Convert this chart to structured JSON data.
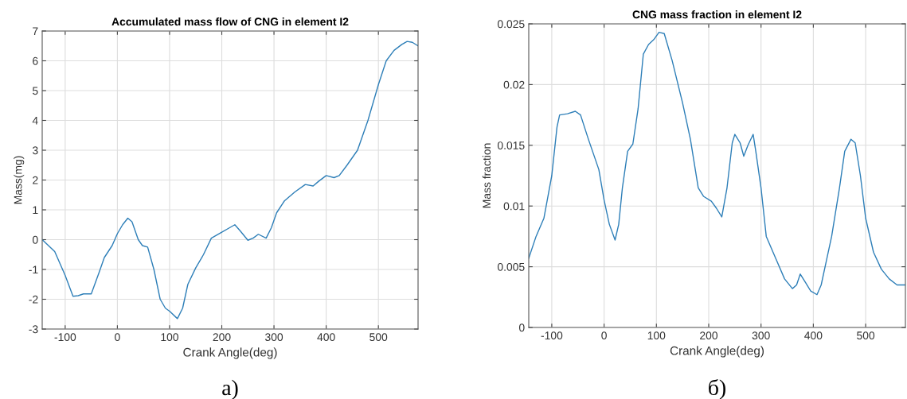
{
  "chart_data": [
    {
      "type": "line",
      "title": "Accumulated mass flow of CNG in element I2",
      "xlabel": "Crank Angle(deg)",
      "ylabel": "Mass(mg)",
      "annotations": [
        "a)"
      ],
      "x": [
        -144,
        -120,
        -100,
        -85,
        -75,
        -65,
        -50,
        -35,
        -25,
        -10,
        0,
        10,
        20,
        28,
        40,
        48,
        58,
        70,
        82,
        92,
        100,
        115,
        125,
        135,
        150,
        165,
        180,
        200,
        215,
        225,
        235,
        250,
        260,
        270,
        285,
        295,
        305,
        320,
        340,
        360,
        375,
        385,
        400,
        415,
        425,
        440,
        460,
        480,
        500,
        515,
        530,
        545,
        555,
        565,
        576
      ],
      "series": [
        {
          "color": "#2e7fb8",
          "values": [
            0,
            -0.4,
            -1.2,
            -1.9,
            -1.88,
            -1.82,
            -1.82,
            -1.1,
            -0.6,
            -0.2,
            0.2,
            0.5,
            0.72,
            0.6,
            0,
            -0.2,
            -0.25,
            -1.0,
            -2.0,
            -2.3,
            -2.4,
            -2.65,
            -2.3,
            -1.5,
            -0.95,
            -0.5,
            0.05,
            0.25,
            0.4,
            0.5,
            0.3,
            -0.02,
            0.05,
            0.18,
            0.05,
            0.4,
            0.9,
            1.3,
            1.6,
            1.85,
            1.8,
            1.95,
            2.15,
            2.08,
            2.15,
            2.5,
            3.0,
            4.0,
            5.2,
            6.0,
            6.35,
            6.55,
            6.65,
            6.62,
            6.5
          ]
        }
      ],
      "xlim": [
        -144,
        576
      ],
      "xticks": [
        -100,
        0,
        100,
        200,
        300,
        400,
        500
      ],
      "ylim": [
        -3,
        7
      ],
      "yticks": [
        -3,
        -2,
        -1,
        0,
        1,
        2,
        3,
        4,
        5,
        6,
        7
      ],
      "grid": true
    },
    {
      "type": "line",
      "title": "CNG mass fraction in element I2",
      "xlabel": "Crank Angle(deg)",
      "ylabel": "Mass fraction",
      "annotations": [
        "б)"
      ],
      "x": [
        -144,
        -130,
        -115,
        -100,
        -90,
        -85,
        -70,
        -55,
        -45,
        -30,
        -10,
        0,
        10,
        21,
        28,
        35,
        45,
        55,
        65,
        75,
        85,
        95,
        105,
        115,
        130,
        150,
        165,
        180,
        190,
        205,
        215,
        225,
        235,
        245,
        250,
        260,
        267,
        275,
        285,
        290,
        300,
        310,
        330,
        345,
        360,
        368,
        375,
        385,
        395,
        407,
        415,
        425,
        435,
        450,
        460,
        472,
        480,
        490,
        500,
        515,
        530,
        545,
        560,
        576
      ],
      "series": [
        {
          "color": "#2e7fb8",
          "values": [
            0.0057,
            0.0075,
            0.009,
            0.0125,
            0.0165,
            0.0175,
            0.0176,
            0.0178,
            0.0175,
            0.0155,
            0.013,
            0.0105,
            0.0085,
            0.0072,
            0.0085,
            0.0115,
            0.0145,
            0.0151,
            0.018,
            0.0225,
            0.0233,
            0.0237,
            0.0243,
            0.0242,
            0.022,
            0.0185,
            0.0155,
            0.0115,
            0.0108,
            0.0104,
            0.0098,
            0.0091,
            0.0115,
            0.0152,
            0.0159,
            0.0152,
            0.0141,
            0.015,
            0.0159,
            0.0145,
            0.0115,
            0.0075,
            0.0055,
            0.004,
            0.0032,
            0.0035,
            0.0044,
            0.0037,
            0.003,
            0.0027,
            0.0035,
            0.0055,
            0.0075,
            0.0115,
            0.0145,
            0.0155,
            0.0152,
            0.0125,
            0.009,
            0.0062,
            0.0048,
            0.004,
            0.0035,
            0.0035
          ]
        }
      ],
      "xlim": [
        -144,
        576
      ],
      "xticks": [
        -100,
        0,
        100,
        200,
        300,
        400,
        500
      ],
      "ylim": [
        0,
        0.025
      ],
      "yticks": [
        0,
        0.005,
        0.01,
        0.015,
        0.02,
        0.025
      ],
      "grid": true
    }
  ]
}
